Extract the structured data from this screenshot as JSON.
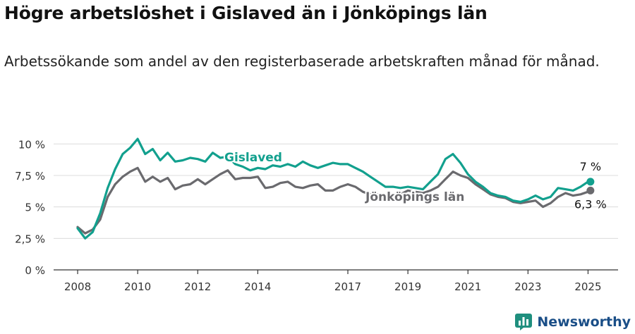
{
  "title": "Högre arbetslöshet i Gislaved än i Jönköpings län",
  "subtitle": "Arbetssökande som andel av den registerbaserade arbetskraften månad för månad.",
  "brand": "Newsworthy",
  "colors": {
    "gislaved": "#12a08e",
    "lan": "#6a6a6e",
    "grid": "#dcdcdc",
    "brand": "#1a4e87"
  },
  "chart_data": {
    "type": "line",
    "ylim": [
      0,
      10.8
    ],
    "xlim": [
      2007.2,
      2026.0
    ],
    "y_ticks": [
      0,
      2.5,
      5,
      7.5,
      10
    ],
    "y_tick_labels": [
      "0 %",
      "2,5 %",
      "5 %",
      "7,5 %",
      "10 %"
    ],
    "x_ticks": [
      2008,
      2010,
      2012,
      2014,
      2017,
      2019,
      2021,
      2023,
      2025
    ],
    "x_tick_labels": [
      "2008",
      "2010",
      "2012",
      "2014",
      "2017",
      "2019",
      "2021",
      "2023",
      "2025"
    ],
    "grid": "horizontal",
    "series": [
      {
        "name": "Gislaved",
        "end_label": "7 %",
        "x": [
          2008.0,
          2008.25,
          2008.5,
          2008.75,
          2009.0,
          2009.25,
          2009.5,
          2009.75,
          2010.0,
          2010.25,
          2010.5,
          2010.75,
          2011.0,
          2011.25,
          2011.5,
          2011.75,
          2012.0,
          2012.25,
          2012.5,
          2012.75,
          2013.0,
          2013.25,
          2013.5,
          2013.75,
          2014.0,
          2014.25,
          2014.5,
          2014.75,
          2015.0,
          2015.25,
          2015.5,
          2015.75,
          2016.0,
          2016.25,
          2016.5,
          2016.75,
          2017.0,
          2017.25,
          2017.5,
          2017.75,
          2018.0,
          2018.25,
          2018.5,
          2018.75,
          2019.0,
          2019.25,
          2019.5,
          2019.75,
          2020.0,
          2020.25,
          2020.5,
          2020.75,
          2021.0,
          2021.25,
          2021.5,
          2021.75,
          2022.0,
          2022.25,
          2022.5,
          2022.75,
          2023.0,
          2023.25,
          2023.5,
          2023.75,
          2024.0,
          2024.25,
          2024.5,
          2024.75,
          2025.0,
          2025.08
        ],
        "values": [
          3.3,
          2.5,
          3.0,
          4.5,
          6.5,
          8.0,
          9.2,
          9.7,
          10.4,
          9.2,
          9.6,
          8.7,
          9.3,
          8.6,
          8.7,
          8.9,
          8.8,
          8.6,
          9.3,
          8.9,
          9.0,
          8.4,
          8.2,
          7.9,
          8.1,
          8.0,
          8.3,
          8.2,
          8.4,
          8.2,
          8.6,
          8.3,
          8.1,
          8.3,
          8.5,
          8.4,
          8.4,
          8.1,
          7.8,
          7.4,
          7.0,
          6.6,
          6.6,
          6.5,
          6.6,
          6.5,
          6.4,
          7.0,
          7.6,
          8.8,
          9.2,
          8.5,
          7.6,
          7.0,
          6.6,
          6.1,
          5.9,
          5.8,
          5.5,
          5.4,
          5.6,
          5.9,
          5.6,
          5.8,
          6.5,
          6.4,
          6.3,
          6.6,
          7.0,
          7.0
        ]
      },
      {
        "name": "Jönköpings län",
        "end_label": "6,3 %",
        "x": [
          2008.0,
          2008.25,
          2008.5,
          2008.75,
          2009.0,
          2009.25,
          2009.5,
          2009.75,
          2010.0,
          2010.25,
          2010.5,
          2010.75,
          2011.0,
          2011.25,
          2011.5,
          2011.75,
          2012.0,
          2012.25,
          2012.5,
          2012.75,
          2013.0,
          2013.25,
          2013.5,
          2013.75,
          2014.0,
          2014.25,
          2014.5,
          2014.75,
          2015.0,
          2015.25,
          2015.5,
          2015.75,
          2016.0,
          2016.25,
          2016.5,
          2016.75,
          2017.0,
          2017.25,
          2017.5,
          2017.75,
          2018.0,
          2018.25,
          2018.5,
          2018.75,
          2019.0,
          2019.25,
          2019.5,
          2019.75,
          2020.0,
          2020.25,
          2020.5,
          2020.75,
          2021.0,
          2021.25,
          2021.5,
          2021.75,
          2022.0,
          2022.25,
          2022.5,
          2022.75,
          2023.0,
          2023.25,
          2023.5,
          2023.75,
          2024.0,
          2024.25,
          2024.5,
          2024.75,
          2025.0,
          2025.08
        ],
        "values": [
          3.4,
          2.9,
          3.2,
          4.0,
          5.8,
          6.8,
          7.4,
          7.8,
          8.1,
          7.0,
          7.4,
          7.0,
          7.3,
          6.4,
          6.7,
          6.8,
          7.2,
          6.8,
          7.2,
          7.6,
          7.9,
          7.2,
          7.3,
          7.3,
          7.4,
          6.5,
          6.6,
          6.9,
          7.0,
          6.6,
          6.5,
          6.7,
          6.8,
          6.3,
          6.3,
          6.6,
          6.8,
          6.6,
          6.2,
          6.0,
          6.0,
          5.9,
          5.9,
          6.0,
          6.3,
          6.2,
          6.1,
          6.3,
          6.6,
          7.2,
          7.8,
          7.5,
          7.3,
          6.8,
          6.4,
          6.0,
          5.8,
          5.7,
          5.4,
          5.3,
          5.4,
          5.5,
          5.0,
          5.3,
          5.8,
          6.1,
          5.9,
          6.0,
          6.2,
          6.3
        ]
      }
    ]
  }
}
